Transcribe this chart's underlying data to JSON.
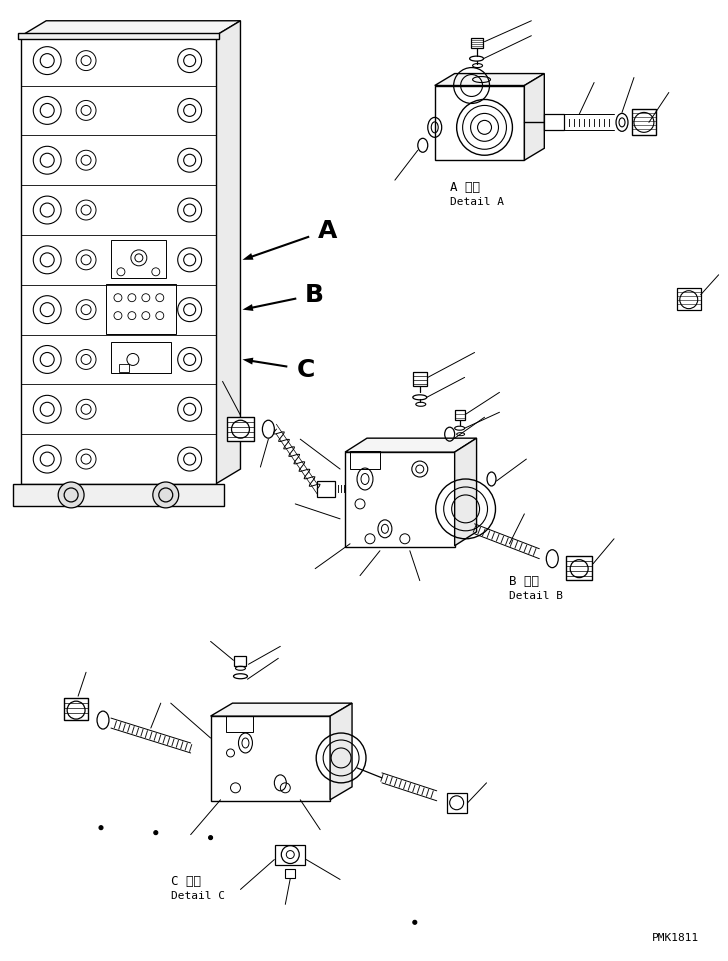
{
  "background_color": "#ffffff",
  "line_color": "#000000",
  "watermark": "PMK1811",
  "label_A_jp": "A 詳細",
  "label_A_en": "Detail A",
  "label_B_jp": "B 詳細",
  "label_B_en": "Detail B",
  "label_C_jp": "C 詳細",
  "label_C_en": "Detail C",
  "figsize": [
    7.28,
    9.62
  ],
  "dpi": 100,
  "arrow_A_label": "A",
  "arrow_B_label": "B",
  "arrow_C_label": "C"
}
